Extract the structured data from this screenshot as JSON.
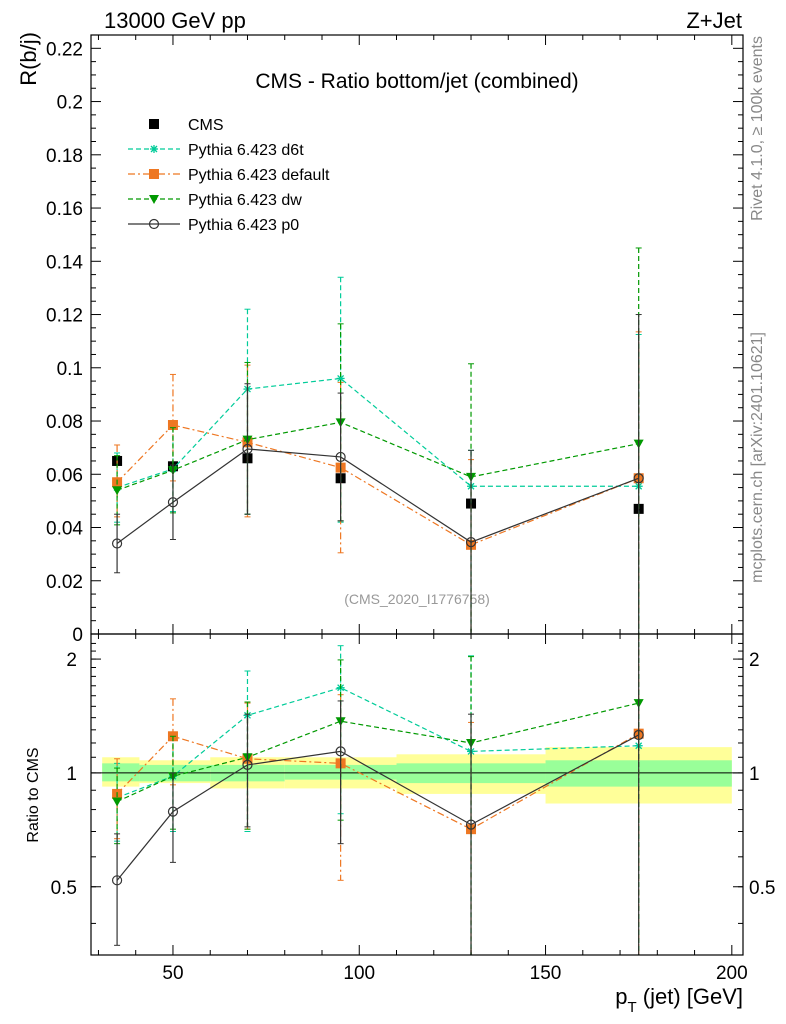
{
  "header": {
    "left": "13000 GeV pp",
    "right": "Z+Jet"
  },
  "side_labels": {
    "rivet": "Rivet 4.1.0, ≥ 100k events",
    "mcplots": "mcplots.cern.ch [arXiv:2401.10621]"
  },
  "chart_data": [
    {
      "type": "scatter",
      "title": "CMS - Ratio bottom/jet (combined)",
      "watermark": "(CMS_2020_I1776758)",
      "ylabel": "R(b/j)",
      "xlabel": "",
      "xlim": [
        28,
        203
      ],
      "ylim": [
        0,
        0.225
      ],
      "yticks": [
        0,
        0.02,
        0.04,
        0.06,
        0.08,
        0.1,
        0.12,
        0.14,
        0.16,
        0.18,
        0.2,
        0.22
      ],
      "yticklabels": [
        "0",
        "0.02",
        "0.04",
        "0.06",
        "0.08",
        "0.1",
        "0.12",
        "0.14",
        "0.16",
        "0.18",
        "0.2",
        "0.22"
      ],
      "legend_position": "top-left",
      "x": [
        35,
        50,
        70,
        95,
        130,
        175
      ],
      "series": [
        {
          "name": "CMS",
          "color": "#000000",
          "marker": "square",
          "line": "none",
          "values": [
            0.065,
            0.063,
            0.066,
            0.0585,
            0.049,
            0.047
          ],
          "err_lo": [
            0.0,
            0.0,
            0.0,
            0.0,
            0.0,
            0.0
          ],
          "err_hi": [
            0.0,
            0.0,
            0.0,
            0.0,
            0.0,
            0.0
          ]
        },
        {
          "name": "Pythia 6.423 d6t",
          "color": "#00cc99",
          "marker": "star",
          "line": "dashed",
          "values": [
            0.055,
            0.062,
            0.092,
            0.096,
            0.0555,
            0.0555
          ],
          "err_lo": [
            0.013,
            0.016,
            0.047,
            0.054,
            0.0555,
            0.0555
          ],
          "err_hi": [
            0.013,
            0.016,
            0.03,
            0.038,
            0.0135,
            0.057
          ]
        },
        {
          "name": "Pythia 6.423 default",
          "color": "#ee7722",
          "marker": "square",
          "line": "dashdot",
          "values": [
            0.057,
            0.0785,
            0.072,
            0.0625,
            0.0335,
            0.0585
          ],
          "err_lo": [
            0.013,
            0.021,
            0.028,
            0.032,
            0.0335,
            0.0585
          ],
          "err_hi": [
            0.014,
            0.019,
            0.029,
            0.032,
            0.032,
            0.055
          ]
        },
        {
          "name": "Pythia 6.423 dw",
          "color": "#009900",
          "marker": "triangle-down",
          "line": "dashed",
          "values": [
            0.054,
            0.0615,
            0.073,
            0.0795,
            0.059,
            0.0715
          ],
          "err_lo": [
            0.013,
            0.016,
            0.028,
            0.037,
            0.059,
            0.0715
          ],
          "err_hi": [
            0.013,
            0.016,
            0.029,
            0.037,
            0.0425,
            0.0735
          ]
        },
        {
          "name": "Pythia 6.423 p0",
          "color": "#333333",
          "marker": "circle-open",
          "line": "solid",
          "values": [
            0.034,
            0.0495,
            0.0695,
            0.0665,
            0.0345,
            0.0585
          ],
          "err_lo": [
            0.011,
            0.014,
            0.0245,
            0.024,
            0.0345,
            0.0585
          ],
          "err_hi": [
            0.011,
            0.014,
            0.0245,
            0.024,
            0.0345,
            0.0615
          ]
        }
      ]
    },
    {
      "type": "scatter",
      "title": "",
      "ylabel": "Ratio to CMS",
      "xlabel": "p_T (jet) [GeV]",
      "xlabel_main": "p",
      "xlabel_sub": "T",
      "xlabel_rest": " (jet) [GeV]",
      "xlim": [
        28,
        203
      ],
      "ylim": [
        0.33,
        2.33
      ],
      "yscale": "log",
      "yticks": [
        0.5,
        1,
        2
      ],
      "yticklabels": [
        "0.5",
        "1",
        "2"
      ],
      "xticks": [
        50,
        100,
        150,
        200
      ],
      "xticklabels": [
        "50",
        "100",
        "150",
        "200"
      ],
      "x": [
        35,
        50,
        70,
        95,
        130,
        175
      ],
      "bands": {
        "bin_edges": [
          31,
          41,
          60,
          80,
          110,
          150,
          200
        ],
        "inner_lo": [
          0.95,
          0.95,
          0.95,
          0.96,
          0.94,
          0.92
        ],
        "inner_hi": [
          1.06,
          1.05,
          1.05,
          1.05,
          1.06,
          1.08
        ],
        "outer_lo": [
          0.92,
          0.94,
          0.91,
          0.91,
          0.88,
          0.83
        ],
        "outer_hi": [
          1.1,
          1.08,
          1.1,
          1.1,
          1.12,
          1.17
        ],
        "inner_color": "#99ff99",
        "outer_color": "#ffff99"
      },
      "series": [
        {
          "name": "Pythia 6.423 d6t",
          "color": "#00cc99",
          "marker": "star",
          "line": "dashed",
          "values": [
            0.86,
            0.98,
            1.42,
            1.68,
            1.14,
            1.18
          ],
          "err_lo": [
            0.2,
            0.28,
            0.72,
            0.9,
            0.81,
            0.85
          ],
          "err_hi": [
            0.2,
            0.28,
            0.44,
            0.49,
            0.9,
            1.2
          ]
        },
        {
          "name": "Pythia 6.423 default",
          "color": "#ee7722",
          "marker": "square",
          "line": "dashdot",
          "values": [
            0.88,
            1.25,
            1.09,
            1.06,
            0.71,
            1.27
          ],
          "err_lo": [
            0.21,
            0.32,
            0.38,
            0.54,
            0.38,
            0.94
          ],
          "err_hi": [
            0.21,
            0.32,
            0.44,
            0.55,
            0.65,
            1.1
          ]
        },
        {
          "name": "Pythia 6.423 dw",
          "color": "#009900",
          "marker": "triangle-down",
          "line": "dashed",
          "values": [
            0.84,
            0.98,
            1.1,
            1.37,
            1.2,
            1.53
          ],
          "err_lo": [
            0.19,
            0.27,
            0.39,
            0.62,
            0.87,
            1.2
          ],
          "err_hi": [
            0.19,
            0.27,
            0.44,
            0.62,
            0.83,
            1.0
          ]
        },
        {
          "name": "Pythia 6.423 p0",
          "color": "#333333",
          "marker": "circle-open",
          "line": "solid",
          "values": [
            0.52,
            0.79,
            1.05,
            1.14,
            0.73,
            1.26
          ],
          "err_lo": [
            0.17,
            0.21,
            0.33,
            0.49,
            0.4,
            0.93
          ],
          "err_hi": [
            0.17,
            0.21,
            0.38,
            0.41,
            0.7,
            1.2
          ]
        }
      ]
    }
  ]
}
